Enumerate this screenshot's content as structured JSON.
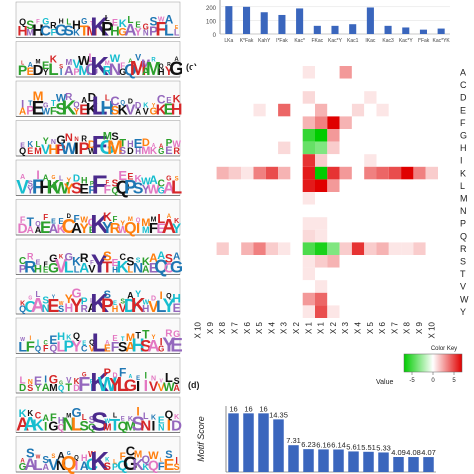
{
  "labels": {
    "c": "(c)",
    "d": "(d)"
  },
  "logo_centers": [
    "K",
    "K",
    "L",
    "F",
    "F",
    "K",
    "Y",
    "K",
    "L",
    "K",
    "S",
    "K"
  ],
  "chart_data": [
    {
      "type": "bar",
      "title": "",
      "yticks": [
        0,
        100,
        200
      ],
      "ylim": [
        0,
        250
      ],
      "categories": [
        "LKa",
        "K*Fak",
        "KahY",
        "I*Fak",
        "Kac*",
        "FKac",
        "Kac*Y",
        "Kac1",
        "IKac",
        "Kac3",
        "Kac*Y",
        "I*Fak",
        "Kac*YK"
      ],
      "values": [
        205,
        200,
        160,
        140,
        188,
        60,
        60,
        72,
        195,
        60,
        48,
        32,
        40
      ],
      "color": "#3a66bd"
    },
    {
      "type": "heatmap",
      "rows": [
        "A",
        "C",
        "D",
        "E",
        "F",
        "G",
        "H",
        "I",
        "K",
        "L",
        "M",
        "N",
        "P",
        "Q",
        "R",
        "S",
        "T",
        "V",
        "W",
        "Y"
      ],
      "cols": [
        "X 10",
        "X 9",
        "X 8",
        "X 7",
        "X 6",
        "X 5",
        "X 4",
        "X 3",
        "X 2",
        "X 1",
        "X 1",
        "X 2",
        "X 3",
        "X 4",
        "X 5",
        "X 6",
        "X 7",
        "X 8",
        "X 9",
        "X 10"
      ],
      "values": [
        [
          0,
          0,
          0,
          0,
          0,
          0,
          0,
          0,
          0,
          0.1,
          0,
          0,
          0.4,
          0,
          0,
          0,
          0,
          0,
          0,
          0
        ],
        [
          0,
          0,
          0,
          0,
          0,
          0,
          0,
          0,
          0,
          0,
          0,
          0,
          0,
          0,
          0,
          0,
          0,
          0,
          0,
          0
        ],
        [
          0,
          0,
          0,
          0,
          0,
          0,
          0,
          0,
          0,
          0.15,
          0,
          0,
          0,
          0,
          0.1,
          0,
          0,
          0,
          0,
          0
        ],
        [
          0,
          0,
          0,
          0,
          0,
          0.1,
          0,
          0.6,
          0,
          0,
          0.3,
          0,
          0,
          0.15,
          0,
          0.1,
          0,
          0,
          0,
          0
        ],
        [
          0,
          0,
          0,
          0,
          0,
          0,
          0,
          0,
          0,
          0.3,
          0.5,
          1.0,
          0.3,
          0,
          0,
          0,
          0,
          0,
          0,
          0
        ],
        [
          0,
          0,
          0,
          0,
          0,
          0,
          0,
          0,
          0,
          -0.8,
          -1.0,
          0.4,
          0,
          0,
          0,
          0,
          0,
          0,
          0,
          0
        ],
        [
          0,
          0,
          0,
          0,
          0,
          0,
          0,
          0.15,
          0,
          -0.6,
          -0.5,
          0.2,
          0,
          0,
          0,
          0,
          0,
          0,
          0,
          0
        ],
        [
          0,
          0,
          0,
          0,
          0,
          0,
          0,
          0,
          0,
          0.8,
          0.2,
          0,
          0,
          0,
          0.1,
          0,
          0,
          0,
          0,
          0
        ],
        [
          0,
          0,
          0.3,
          0.2,
          0.1,
          0.5,
          0.7,
          0.3,
          0,
          0.9,
          -1.0,
          0.8,
          0.4,
          0,
          0.5,
          0.6,
          0.7,
          1.0,
          0.5,
          0.2
        ],
        [
          0,
          0,
          0,
          0,
          0,
          0,
          0,
          0,
          0,
          0.9,
          1.0,
          0.4,
          0,
          0,
          0,
          0,
          0,
          0,
          0,
          0
        ],
        [
          0,
          0,
          0,
          0,
          0,
          0,
          0,
          0,
          0,
          0.1,
          0,
          0,
          0,
          0,
          0,
          0,
          0,
          0,
          0,
          0
        ],
        [
          0,
          0,
          0,
          0,
          0,
          0,
          0,
          0,
          0,
          0,
          0,
          0,
          0,
          0,
          0,
          0,
          0,
          0,
          0,
          0
        ],
        [
          0,
          0,
          0,
          0,
          0,
          0,
          0,
          0,
          0,
          0.1,
          0.1,
          0,
          0,
          0,
          0,
          0,
          0,
          0,
          0,
          0
        ],
        [
          0,
          0,
          0,
          0,
          0,
          0,
          0,
          0,
          0,
          0.15,
          0.1,
          0,
          0,
          0,
          0,
          0,
          0,
          0,
          0,
          0
        ],
        [
          0,
          0,
          0.2,
          0,
          0.3,
          0.5,
          0.2,
          0.1,
          0,
          -0.7,
          -0.9,
          -0.5,
          0.2,
          0.8,
          0.2,
          0.3,
          0.1,
          0.1,
          0.2,
          0
        ],
        [
          0,
          0,
          0,
          0,
          0,
          0,
          0,
          0,
          0,
          0.1,
          0.2,
          0.3,
          0,
          0,
          0,
          0,
          0,
          0,
          0,
          0
        ],
        [
          0,
          0,
          0,
          0,
          0,
          0,
          0,
          0,
          0,
          0.1,
          0,
          0,
          0,
          0,
          0,
          0,
          0,
          0,
          0,
          0
        ],
        [
          0,
          0,
          0,
          0,
          0,
          0,
          0,
          0,
          0,
          0,
          0.1,
          0,
          0,
          0,
          0,
          0,
          0,
          0,
          0,
          0
        ],
        [
          0,
          0,
          0,
          0,
          0,
          0,
          0,
          0,
          0,
          0.4,
          0.6,
          0,
          0,
          0,
          0,
          0,
          0,
          0,
          0,
          0
        ],
        [
          0,
          0,
          0,
          0,
          0,
          0,
          0,
          0,
          0,
          0.1,
          0.7,
          0.1,
          0,
          0,
          0,
          0,
          0,
          0,
          0,
          0
        ]
      ],
      "colors": {
        "low": "#00cc00",
        "mid": "#ffffff",
        "high": "#e00000"
      },
      "color_key": {
        "title": "Color Key",
        "xlabel": "Value",
        "ticks": [
          "-5",
          "0",
          "5"
        ]
      }
    },
    {
      "type": "bar",
      "ylabel": "Motif Score",
      "values": [
        16,
        16,
        16,
        14.35,
        7.31,
        6.23,
        6.16,
        6.14,
        5.61,
        5.51,
        5.33,
        4.09,
        4.08,
        4.07
      ],
      "value_labels": [
        "16",
        "16",
        "16",
        "14.35",
        "7.31",
        "6.23",
        "6.16",
        "6.14",
        "5.61",
        "5.51",
        "5.33",
        "4.09",
        "4.08",
        "4.07"
      ],
      "ylim": [
        0,
        18
      ],
      "color": "#3a66bd"
    }
  ]
}
